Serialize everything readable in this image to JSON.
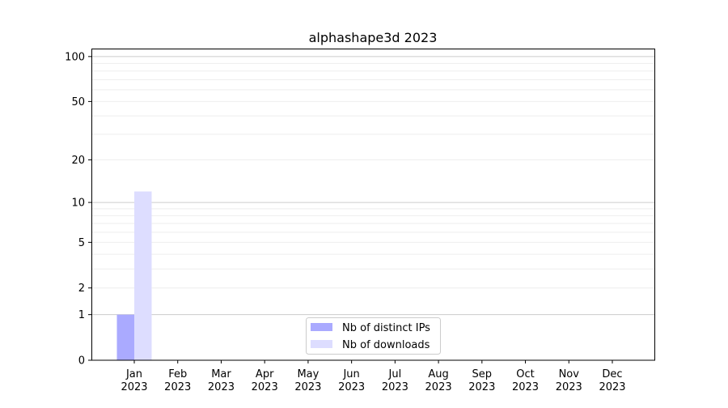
{
  "chart_data": {
    "type": "bar",
    "title": "alphashape3d 2023",
    "xlabel": "",
    "ylabel": "",
    "yscale": "log10(1+y)",
    "ylim": [
      0,
      113
    ],
    "grid": true,
    "legend_position": "bottom-center",
    "categories": [
      "Jan\n2023",
      "Feb\n2023",
      "Mar\n2023",
      "Apr\n2023",
      "May\n2023",
      "Jun\n2023",
      "Jul\n2023",
      "Aug\n2023",
      "Sep\n2023",
      "Oct\n2023",
      "Nov\n2023",
      "Dec\n2023"
    ],
    "yticks": [
      0,
      1,
      2,
      5,
      10,
      20,
      50,
      100
    ],
    "series": [
      {
        "name": "Nb of distinct IPs",
        "color": "#aaaaff",
        "values": [
          1,
          0,
          0,
          0,
          0,
          0,
          0,
          0,
          0,
          0,
          0,
          0
        ]
      },
      {
        "name": "Nb of downloads",
        "color": "#ddddff",
        "values": [
          12,
          0,
          0,
          0,
          0,
          0,
          0,
          0,
          0,
          0,
          0,
          0
        ]
      }
    ]
  }
}
